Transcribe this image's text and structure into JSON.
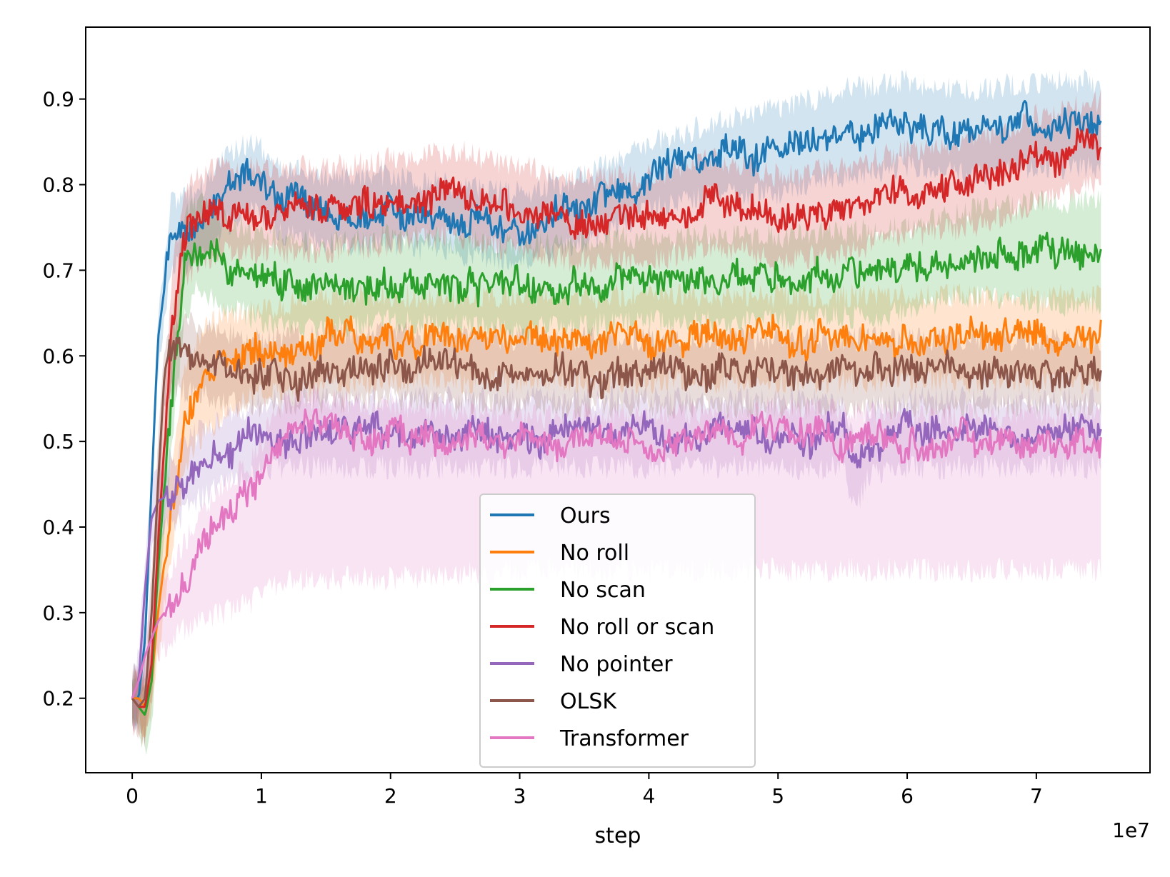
{
  "chart_data": {
    "type": "line",
    "title": "",
    "xlabel": "step",
    "ylabel": "",
    "x_offset_label": "1e7",
    "xlim": [
      -0.36,
      7.88
    ],
    "ylim": [
      0.113,
      0.984
    ],
    "x_ticks": [
      0,
      1,
      2,
      3,
      4,
      5,
      6,
      7
    ],
    "x_tick_labels": [
      "0",
      "1",
      "2",
      "3",
      "4",
      "5",
      "6",
      "7"
    ],
    "y_ticks": [
      0.2,
      0.3,
      0.4,
      0.5,
      0.6,
      0.7,
      0.8,
      0.9
    ],
    "y_tick_labels": [
      "0.2",
      "0.3",
      "0.4",
      "0.5",
      "0.6",
      "0.7",
      "0.8",
      "0.9"
    ],
    "grid": false,
    "legend_position": "lower-center",
    "series": [
      {
        "name": "Ours",
        "color": "#1f77b4",
        "x": [
          0.0,
          0.05,
          0.1,
          0.15,
          0.2,
          0.3,
          0.5,
          0.7,
          0.9,
          1.2,
          1.5,
          2.0,
          2.5,
          3.0,
          3.5,
          4.0,
          4.5,
          5.0,
          5.5,
          6.0,
          6.5,
          7.0,
          7.5
        ],
        "y": [
          0.2,
          0.2,
          0.27,
          0.45,
          0.62,
          0.74,
          0.75,
          0.79,
          0.81,
          0.78,
          0.77,
          0.77,
          0.76,
          0.75,
          0.77,
          0.81,
          0.83,
          0.84,
          0.86,
          0.87,
          0.86,
          0.87,
          0.87
        ],
        "band": [
          0.025,
          0.025,
          0.03,
          0.03,
          0.03,
          0.04,
          0.04,
          0.04,
          0.04,
          0.04,
          0.04,
          0.04,
          0.04,
          0.04,
          0.04,
          0.04,
          0.04,
          0.05,
          0.05,
          0.05,
          0.05,
          0.05,
          0.05
        ]
      },
      {
        "name": "No roll",
        "color": "#ff7f0e",
        "x": [
          0.0,
          0.05,
          0.1,
          0.15,
          0.2,
          0.3,
          0.4,
          0.5,
          0.7,
          0.9,
          1.2,
          1.5,
          2.0,
          3.0,
          4.0,
          5.0,
          6.0,
          7.0,
          7.5
        ],
        "y": [
          0.2,
          0.2,
          0.19,
          0.22,
          0.3,
          0.42,
          0.52,
          0.56,
          0.59,
          0.6,
          0.61,
          0.62,
          0.62,
          0.62,
          0.62,
          0.62,
          0.62,
          0.62,
          0.62
        ],
        "band": [
          0.025,
          0.025,
          0.03,
          0.04,
          0.05,
          0.05,
          0.06,
          0.06,
          0.06,
          0.05,
          0.05,
          0.05,
          0.05,
          0.05,
          0.05,
          0.05,
          0.05,
          0.05,
          0.05
        ]
      },
      {
        "name": "No scan",
        "color": "#2ca02c",
        "x": [
          0.0,
          0.05,
          0.1,
          0.15,
          0.2,
          0.3,
          0.4,
          0.5,
          0.7,
          1.0,
          1.5,
          2.0,
          3.0,
          4.0,
          5.0,
          6.0,
          6.5,
          7.0,
          7.5
        ],
        "y": [
          0.2,
          0.19,
          0.18,
          0.22,
          0.35,
          0.55,
          0.7,
          0.73,
          0.71,
          0.69,
          0.68,
          0.69,
          0.68,
          0.69,
          0.69,
          0.7,
          0.72,
          0.72,
          0.72
        ],
        "band": [
          0.03,
          0.03,
          0.04,
          0.05,
          0.06,
          0.07,
          0.06,
          0.05,
          0.05,
          0.05,
          0.05,
          0.05,
          0.05,
          0.05,
          0.05,
          0.05,
          0.05,
          0.06,
          0.06
        ]
      },
      {
        "name": "No roll or scan",
        "color": "#d62728",
        "x": [
          0.0,
          0.05,
          0.1,
          0.15,
          0.2,
          0.3,
          0.4,
          0.5,
          0.7,
          1.0,
          1.5,
          2.0,
          2.5,
          3.0,
          3.5,
          4.0,
          4.5,
          5.0,
          5.5,
          6.0,
          6.5,
          7.0,
          7.5
        ],
        "y": [
          0.2,
          0.19,
          0.19,
          0.24,
          0.38,
          0.62,
          0.74,
          0.76,
          0.77,
          0.77,
          0.77,
          0.78,
          0.79,
          0.77,
          0.76,
          0.76,
          0.78,
          0.76,
          0.77,
          0.79,
          0.8,
          0.83,
          0.85
        ],
        "band": [
          0.03,
          0.03,
          0.04,
          0.05,
          0.06,
          0.06,
          0.06,
          0.05,
          0.05,
          0.05,
          0.05,
          0.05,
          0.05,
          0.05,
          0.05,
          0.05,
          0.05,
          0.05,
          0.05,
          0.05,
          0.05,
          0.05,
          0.05
        ]
      },
      {
        "name": "No pointer",
        "color": "#9467bd",
        "x": [
          0.0,
          0.05,
          0.1,
          0.15,
          0.2,
          0.3,
          0.5,
          0.7,
          0.9,
          1.1,
          1.5,
          2.0,
          3.0,
          4.0,
          5.0,
          5.5,
          5.6,
          5.7,
          6.0,
          7.0,
          7.5
        ],
        "y": [
          0.2,
          0.22,
          0.33,
          0.41,
          0.43,
          0.44,
          0.47,
          0.49,
          0.5,
          0.51,
          0.51,
          0.51,
          0.51,
          0.51,
          0.51,
          0.51,
          0.46,
          0.5,
          0.51,
          0.51,
          0.51
        ],
        "band": [
          0.03,
          0.03,
          0.04,
          0.04,
          0.04,
          0.04,
          0.04,
          0.04,
          0.04,
          0.04,
          0.04,
          0.04,
          0.04,
          0.04,
          0.04,
          0.04,
          0.04,
          0.04,
          0.04,
          0.04,
          0.04
        ]
      },
      {
        "name": "OLSK",
        "color": "#8c564b",
        "x": [
          0.0,
          0.05,
          0.1,
          0.15,
          0.2,
          0.25,
          0.3,
          0.4,
          0.6,
          1.0,
          2.0,
          3.0,
          4.0,
          5.0,
          6.0,
          7.0,
          7.5
        ],
        "y": [
          0.2,
          0.19,
          0.2,
          0.3,
          0.45,
          0.58,
          0.6,
          0.6,
          0.59,
          0.58,
          0.59,
          0.58,
          0.58,
          0.58,
          0.58,
          0.58,
          0.58
        ],
        "band": [
          0.03,
          0.03,
          0.04,
          0.04,
          0.04,
          0.04,
          0.04,
          0.04,
          0.04,
          0.04,
          0.04,
          0.04,
          0.04,
          0.04,
          0.04,
          0.04,
          0.04
        ]
      },
      {
        "name": "Transformer",
        "color": "#e377c2",
        "x": [
          0.0,
          0.05,
          0.1,
          0.2,
          0.3,
          0.4,
          0.5,
          0.7,
          0.9,
          1.0,
          1.1,
          1.3,
          1.5,
          2.0,
          3.0,
          4.0,
          5.0,
          6.0,
          7.0,
          7.5
        ],
        "y": [
          0.2,
          0.22,
          0.25,
          0.29,
          0.31,
          0.33,
          0.37,
          0.41,
          0.43,
          0.46,
          0.5,
          0.53,
          0.52,
          0.51,
          0.5,
          0.5,
          0.51,
          0.5,
          0.5,
          0.5
        ],
        "band_low": [
          0.18,
          0.19,
          0.22,
          0.25,
          0.27,
          0.28,
          0.29,
          0.3,
          0.31,
          0.32,
          0.33,
          0.34,
          0.34,
          0.34,
          0.35,
          0.35,
          0.35,
          0.35,
          0.35,
          0.35
        ],
        "band_high": [
          0.22,
          0.24,
          0.28,
          0.33,
          0.35,
          0.38,
          0.41,
          0.45,
          0.47,
          0.5,
          0.53,
          0.56,
          0.55,
          0.54,
          0.53,
          0.53,
          0.54,
          0.53,
          0.53,
          0.53
        ]
      }
    ]
  }
}
